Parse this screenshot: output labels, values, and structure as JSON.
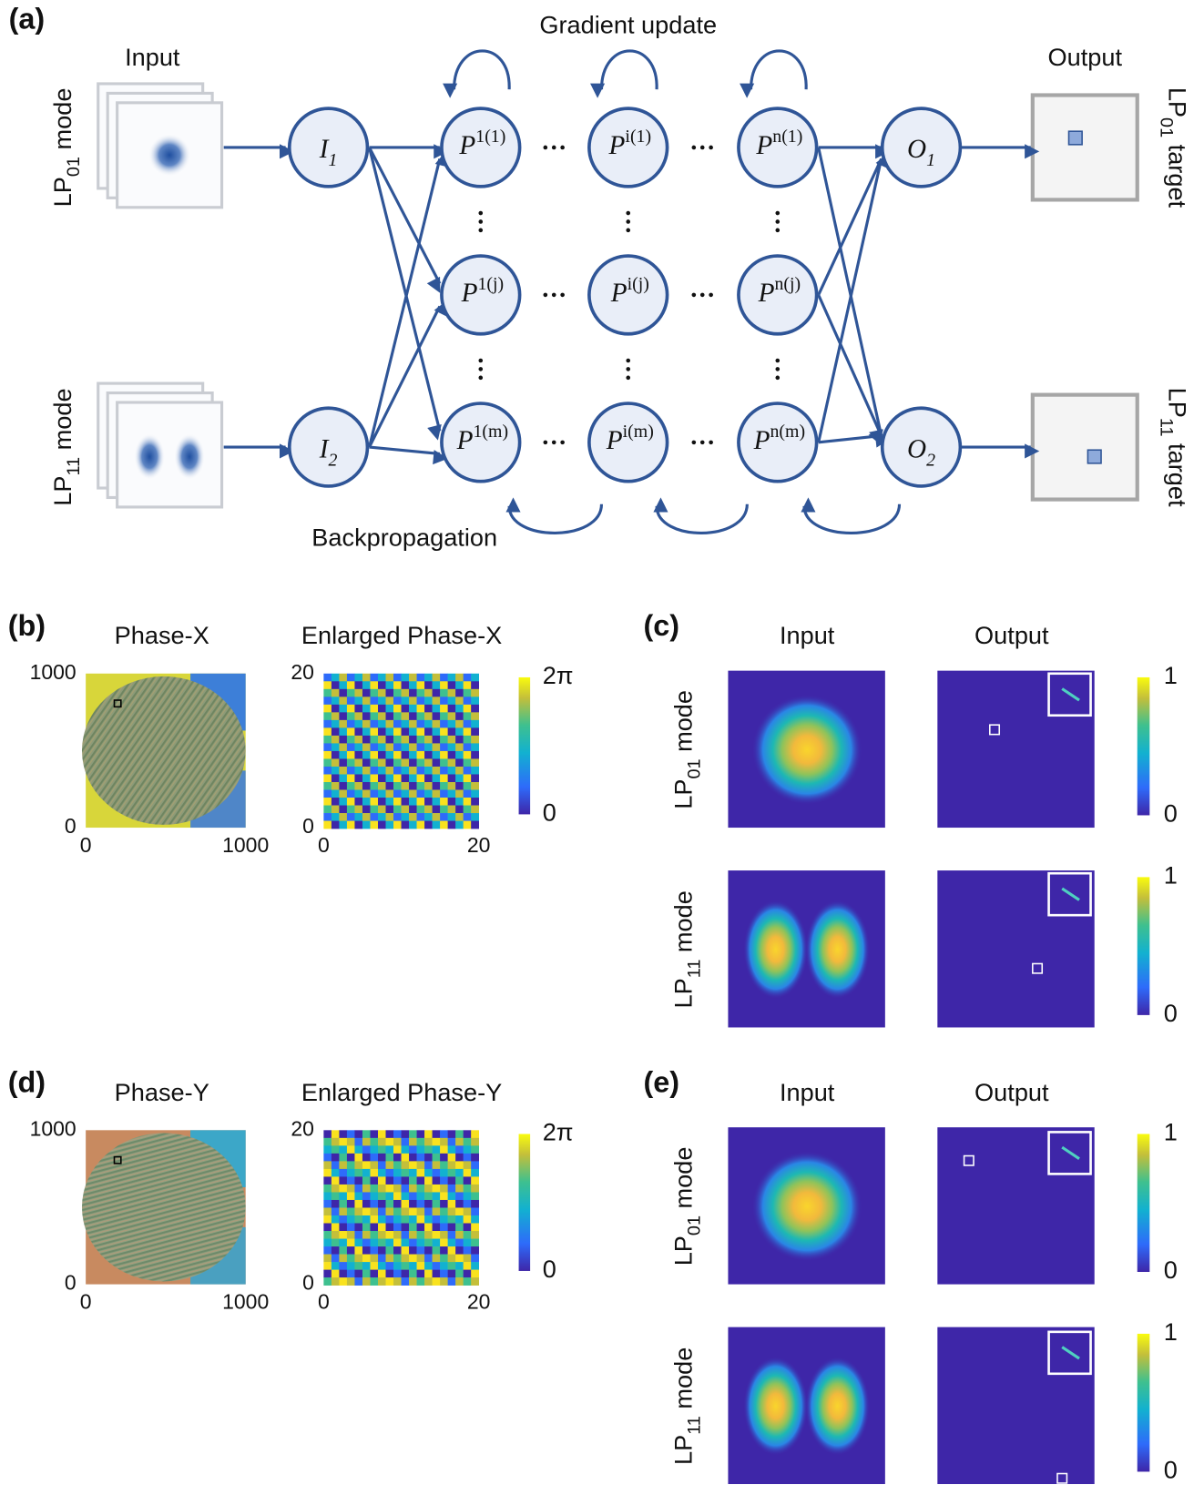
{
  "panel_a": {
    "label": "(a)",
    "input_title": "Input",
    "output_title": "Output",
    "gradient_update": "Gradient update",
    "backpropagation": "Backpropagation",
    "left_labels": [
      {
        "base": "LP",
        "sub": "01",
        "rest": " mode"
      },
      {
        "base": "LP",
        "sub": "11",
        "rest": " mode"
      }
    ],
    "right_labels": [
      {
        "base": "LP",
        "sub": "01",
        "rest": " target"
      },
      {
        "base": "LP",
        "sub": "11",
        "rest": " target"
      }
    ],
    "input_nodes": [
      {
        "main": "I",
        "sub": "1"
      },
      {
        "main": "I",
        "sub": "2"
      }
    ],
    "output_nodes": [
      {
        "main": "O",
        "sub": "1"
      },
      {
        "main": "O",
        "sub": "2"
      }
    ],
    "hidden_nodes": [
      [
        {
          "main": "P",
          "sup": "1(1)"
        },
        {
          "main": "P",
          "sup": "i(1)"
        },
        {
          "main": "P",
          "sup": "n(1)"
        }
      ],
      [
        {
          "main": "P",
          "sup": "1(j)"
        },
        {
          "main": "P",
          "sup": "i(j)"
        },
        {
          "main": "P",
          "sup": "n(j)"
        }
      ],
      [
        {
          "main": "P",
          "sup": "1(m)"
        },
        {
          "main": "P",
          "sup": "i(m)"
        },
        {
          "main": "P",
          "sup": "n(m)"
        }
      ]
    ]
  },
  "phase_panels": [
    {
      "label": "(b)",
      "title": "Phase-X",
      "enlarged_title": "Enlarged Phase-X",
      "full_ticks": [
        0,
        1000
      ],
      "enlarged_ticks": [
        0,
        20
      ],
      "colorbar_ticks": [
        0,
        {
          "value": 6.283185,
          "label": "2π"
        }
      ]
    },
    {
      "label": "(d)",
      "title": "Phase-Y",
      "enlarged_title": "Enlarged Phase-Y",
      "full_ticks": [
        0,
        1000
      ],
      "enlarged_ticks": [
        0,
        20
      ],
      "colorbar_ticks": [
        0,
        {
          "value": 6.283185,
          "label": "2π"
        }
      ]
    }
  ],
  "field_panels": [
    {
      "label": "(c)",
      "input_title": "Input",
      "output_title": "Output",
      "rows": [
        {
          "base": "LP",
          "sub": "01",
          "rest": " mode"
        },
        {
          "base": "LP",
          "sub": "11",
          "rest": " mode"
        }
      ],
      "colorbar_ticks": [
        0,
        1
      ]
    },
    {
      "label": "(e)",
      "input_title": "Input",
      "output_title": "Output",
      "rows": [
        {
          "base": "LP",
          "sub": "01",
          "rest": " mode"
        },
        {
          "base": "LP",
          "sub": "11",
          "rest": " mode"
        }
      ],
      "colorbar_ticks": [
        0,
        1
      ]
    }
  ]
}
